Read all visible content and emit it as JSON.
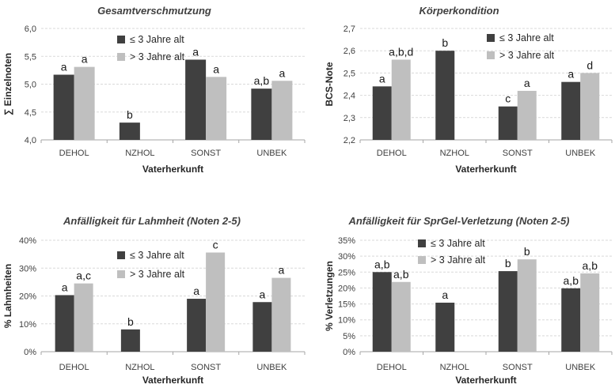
{
  "colors": {
    "young": "#404040",
    "old": "#bfbfbf",
    "grid": "#d9d9d9",
    "axis": "#a6a6a6"
  },
  "legend": {
    "young": "≤ 3 Jahre alt",
    "old": "> 3 Jahre alt"
  },
  "chart_data": [
    {
      "type": "bar",
      "title": "Gesamtverschmutzung",
      "xlabel": "Vaterherkunft",
      "ylabel": "∑ Einzelnoten",
      "ylim": [
        4.0,
        6.0
      ],
      "yticks": [
        4.0,
        4.5,
        5.0,
        5.5,
        6.0
      ],
      "ytick_labels": [
        "4,0",
        "4,5",
        "5,0",
        "5,5",
        "6,0"
      ],
      "grid": true,
      "legend_position": "top-center",
      "categories": [
        "DEHOL",
        "NZHOL",
        "SONST",
        "UNBEK"
      ],
      "series": [
        {
          "name": "≤ 3 Jahre alt",
          "values": [
            5.17,
            4.31,
            5.44,
            4.92
          ],
          "labels": [
            "a",
            "b",
            "a",
            "a,b"
          ]
        },
        {
          "name": "> 3 Jahre alt",
          "values": [
            5.31,
            null,
            5.13,
            5.06
          ],
          "labels": [
            "a",
            "",
            "a",
            "a"
          ]
        }
      ]
    },
    {
      "type": "bar",
      "title": "Körperkondition",
      "xlabel": "Vaterherkunft",
      "ylabel": "BCS-Note",
      "ylim": [
        2.2,
        2.7
      ],
      "yticks": [
        2.2,
        2.3,
        2.4,
        2.5,
        2.6,
        2.7
      ],
      "ytick_labels": [
        "2,2",
        "2,3",
        "2,4",
        "2,5",
        "2,6",
        "2,7"
      ],
      "grid": true,
      "legend_position": "top-center",
      "categories": [
        "DEHOL",
        "NZHOL",
        "SONST",
        "UNBEK"
      ],
      "series": [
        {
          "name": "≤ 3 Jahre alt",
          "values": [
            2.44,
            2.6,
            2.35,
            2.46
          ],
          "labels": [
            "a",
            "b",
            "c",
            "a"
          ]
        },
        {
          "name": "> 3 Jahre alt",
          "values": [
            2.56,
            null,
            2.42,
            2.5
          ],
          "labels": [
            "a,b,d",
            "",
            "a",
            "d"
          ]
        }
      ]
    },
    {
      "type": "bar",
      "title": "Anfälligkeit für Lahmheit (Noten 2-5)",
      "xlabel": "Vaterherkunft",
      "ylabel": "% Lahmheiten",
      "ylim": [
        0,
        40
      ],
      "yticks": [
        0,
        10,
        20,
        30,
        40
      ],
      "ytick_labels": [
        "0%",
        "10%",
        "20%",
        "30%",
        "40%"
      ],
      "grid": true,
      "legend_position": "top-center",
      "categories": [
        "DEHOL",
        "NZHOL",
        "SONST",
        "UNBEK"
      ],
      "series": [
        {
          "name": "≤ 3 Jahre alt",
          "values": [
            20.3,
            8.0,
            19.0,
            17.8
          ],
          "labels": [
            "a",
            "b",
            "a",
            "a"
          ]
        },
        {
          "name": "> 3 Jahre alt",
          "values": [
            24.5,
            null,
            35.6,
            26.5
          ],
          "labels": [
            "a,c",
            "",
            "c",
            "a"
          ]
        }
      ]
    },
    {
      "type": "bar",
      "title": "Anfälligkeit für SprGel-Verletzung (Noten 2-5)",
      "xlabel": "Vaterherkunft",
      "ylabel": "% Verletzungen",
      "ylim": [
        0,
        35
      ],
      "yticks": [
        0,
        5,
        10,
        15,
        20,
        25,
        30,
        35
      ],
      "ytick_labels": [
        "0%",
        "5%",
        "10%",
        "15%",
        "20%",
        "25%",
        "30%",
        "35%"
      ],
      "grid": true,
      "legend_position": "top-center",
      "categories": [
        "DEHOL",
        "NZHOL",
        "SONST",
        "UNBEK"
      ],
      "series": [
        {
          "name": "≤ 3 Jahre alt",
          "values": [
            25.0,
            15.4,
            25.3,
            19.9
          ],
          "labels": [
            "a,b",
            "a",
            "b",
            "a,b"
          ]
        },
        {
          "name": "> 3 Jahre alt",
          "values": [
            21.9,
            null,
            29.0,
            24.6
          ],
          "labels": [
            "a,b",
            "",
            "b",
            "a,b"
          ]
        }
      ]
    }
  ]
}
